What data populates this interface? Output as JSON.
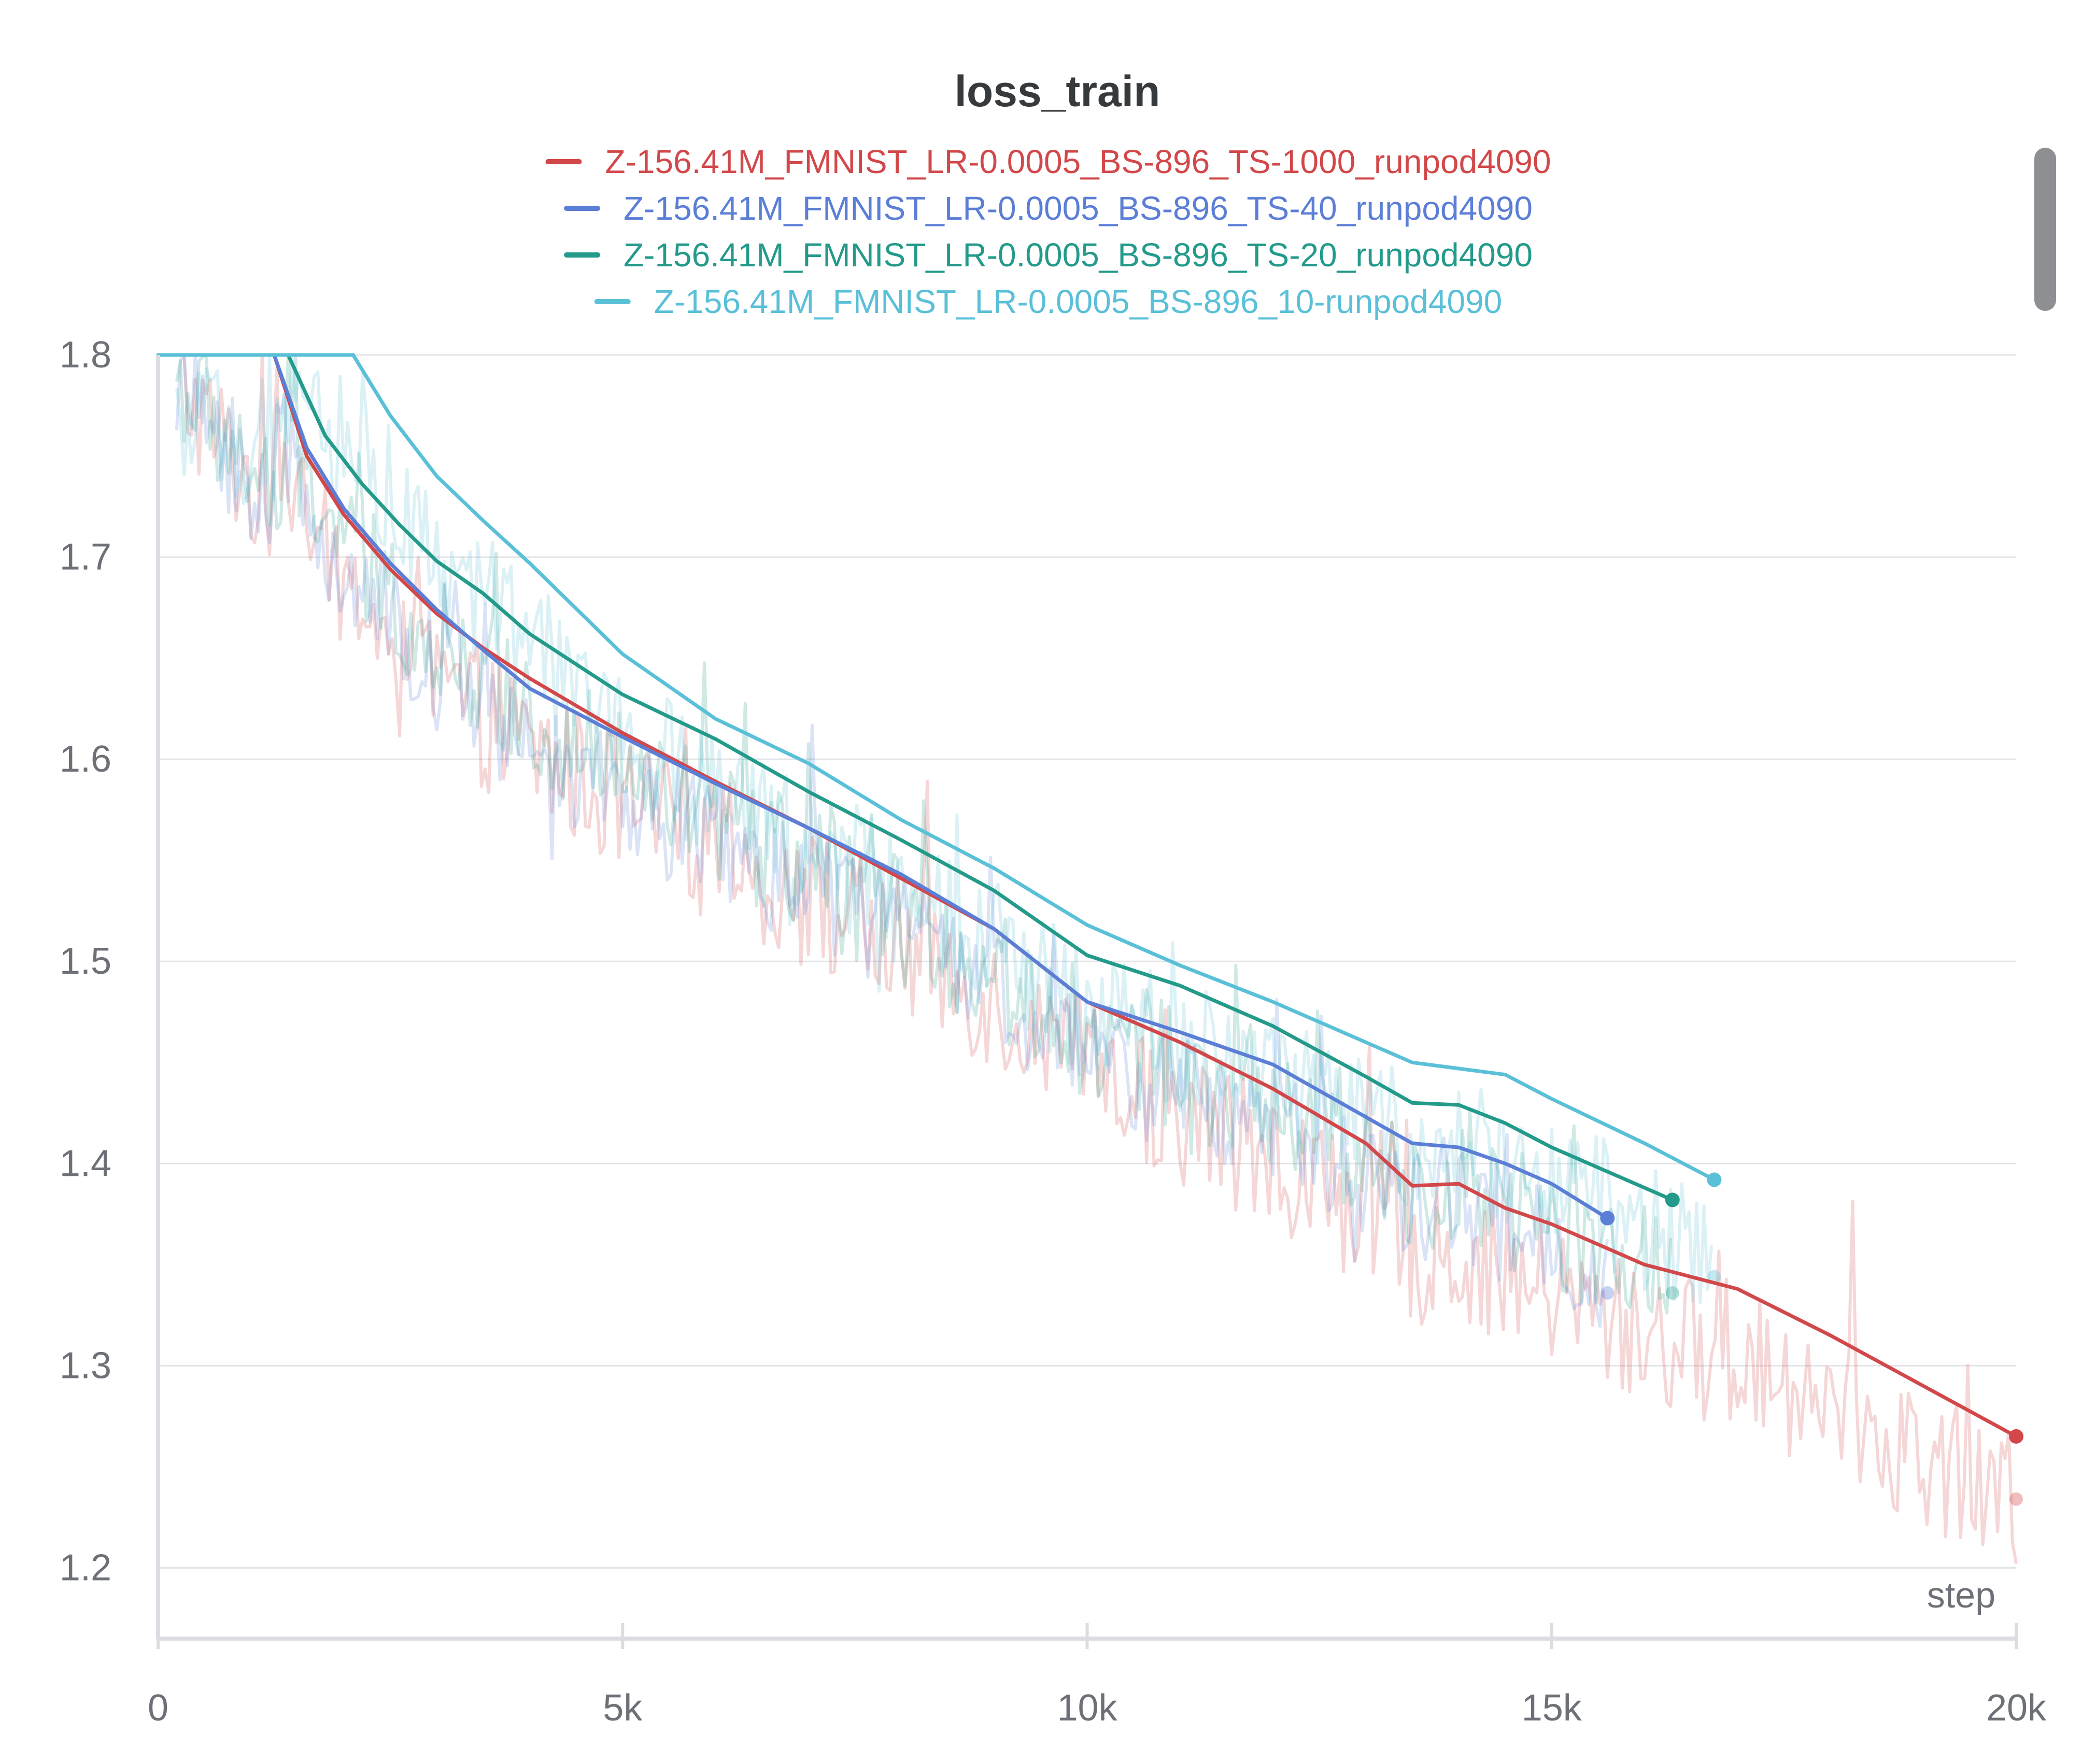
{
  "title": "loss_train",
  "x_axis_label": "step",
  "chart_data": {
    "type": "line",
    "title": "loss_train",
    "xlabel": "step",
    "ylabel": "",
    "xlim": [
      0,
      20000
    ],
    "ylim": [
      1.165,
      1.8
    ],
    "x_ticks": [
      0,
      5000,
      10000,
      15000,
      20000
    ],
    "x_tick_labels": [
      "0",
      "5k",
      "10k",
      "15k",
      "20k"
    ],
    "y_ticks": [
      1.2,
      1.3,
      1.4,
      1.5,
      1.6,
      1.7,
      1.8
    ],
    "y_tick_labels": [
      "1.2",
      "1.3",
      "1.4",
      "1.5",
      "1.6",
      "1.7",
      "1.8"
    ],
    "grid": true,
    "legend_position": "top-center",
    "series": [
      {
        "name": "Z-156.41M_FMNIST_LR-0.0005_BS-896_TS-1000_runpod4090",
        "color": "#d2484a",
        "smoothed": [
          [
            1250,
            1.8
          ],
          [
            1600,
            1.75
          ],
          [
            2000,
            1.721
          ],
          [
            2500,
            1.694
          ],
          [
            3000,
            1.672
          ],
          [
            3500,
            1.655
          ],
          [
            4000,
            1.64
          ],
          [
            5000,
            1.613
          ],
          [
            6000,
            1.589
          ],
          [
            7000,
            1.566
          ],
          [
            8000,
            1.541
          ],
          [
            9000,
            1.516
          ],
          [
            10000,
            1.48
          ],
          [
            11000,
            1.46
          ],
          [
            12000,
            1.437
          ],
          [
            13000,
            1.41
          ],
          [
            13500,
            1.389
          ],
          [
            14000,
            1.39
          ],
          [
            14500,
            1.378
          ],
          [
            15000,
            1.37
          ],
          [
            16000,
            1.35
          ],
          [
            17000,
            1.338
          ],
          [
            18000,
            1.315
          ],
          [
            19000,
            1.29
          ],
          [
            20000,
            1.265
          ]
        ],
        "raw_noise": 0.035,
        "raw_offset": 0.035,
        "raw_start": 200,
        "raw_end": 20000,
        "raw_last": 1.234
      },
      {
        "name": "Z-156.41M_FMNIST_LR-0.0005_BS-896_TS-40_runpod4090",
        "color": "#5b7ed6",
        "smoothed": [
          [
            1250,
            1.8
          ],
          [
            1600,
            1.754
          ],
          [
            2000,
            1.724
          ],
          [
            2500,
            1.697
          ],
          [
            3000,
            1.674
          ],
          [
            3500,
            1.654
          ],
          [
            4000,
            1.635
          ],
          [
            5000,
            1.611
          ],
          [
            6000,
            1.588
          ],
          [
            7000,
            1.566
          ],
          [
            8000,
            1.543
          ],
          [
            9000,
            1.516
          ],
          [
            10000,
            1.48
          ],
          [
            11000,
            1.465
          ],
          [
            12000,
            1.449
          ],
          [
            13000,
            1.423
          ],
          [
            13500,
            1.41
          ],
          [
            14000,
            1.408
          ],
          [
            14500,
            1.4
          ],
          [
            15000,
            1.39
          ],
          [
            15600,
            1.373
          ]
        ],
        "raw_noise": 0.03,
        "raw_offset": 0.03,
        "raw_start": 200,
        "raw_end": 15600,
        "raw_last": 1.336
      },
      {
        "name": "Z-156.41M_FMNIST_LR-0.0005_BS-896_TS-20_runpod4090",
        "color": "#239a8a",
        "smoothed": [
          [
            1400,
            1.8
          ],
          [
            1800,
            1.76
          ],
          [
            2200,
            1.736
          ],
          [
            2600,
            1.716
          ],
          [
            3000,
            1.698
          ],
          [
            3500,
            1.682
          ],
          [
            4000,
            1.662
          ],
          [
            5000,
            1.632
          ],
          [
            6000,
            1.61
          ],
          [
            7000,
            1.584
          ],
          [
            8000,
            1.56
          ],
          [
            9000,
            1.535
          ],
          [
            10000,
            1.503
          ],
          [
            11000,
            1.488
          ],
          [
            12000,
            1.468
          ],
          [
            13000,
            1.443
          ],
          [
            13500,
            1.43
          ],
          [
            14000,
            1.429
          ],
          [
            14500,
            1.42
          ],
          [
            15000,
            1.408
          ],
          [
            16300,
            1.382
          ]
        ],
        "raw_noise": 0.032,
        "raw_offset": 0.04,
        "raw_start": 200,
        "raw_end": 16300,
        "raw_last": 1.336
      },
      {
        "name": "Z-156.41M_FMNIST_LR-0.0005_BS-896_10-runpod4090",
        "color": "#5ac0d8",
        "smoothed": [
          [
            0,
            1.8
          ],
          [
            2100,
            1.8
          ],
          [
            2500,
            1.77
          ],
          [
            3000,
            1.74
          ],
          [
            3500,
            1.718
          ],
          [
            4000,
            1.697
          ],
          [
            5000,
            1.652
          ],
          [
            6000,
            1.62
          ],
          [
            7000,
            1.598
          ],
          [
            8000,
            1.57
          ],
          [
            9000,
            1.546
          ],
          [
            10000,
            1.518
          ],
          [
            11000,
            1.498
          ],
          [
            12000,
            1.48
          ],
          [
            13000,
            1.46
          ],
          [
            13500,
            1.45
          ],
          [
            14000,
            1.447
          ],
          [
            14500,
            1.444
          ],
          [
            15000,
            1.432
          ],
          [
            16000,
            1.41
          ],
          [
            16750,
            1.392
          ]
        ],
        "raw_noise": 0.034,
        "raw_offset": 0.04,
        "raw_start": 200,
        "raw_end": 16750,
        "raw_last": 1.344
      }
    ]
  }
}
